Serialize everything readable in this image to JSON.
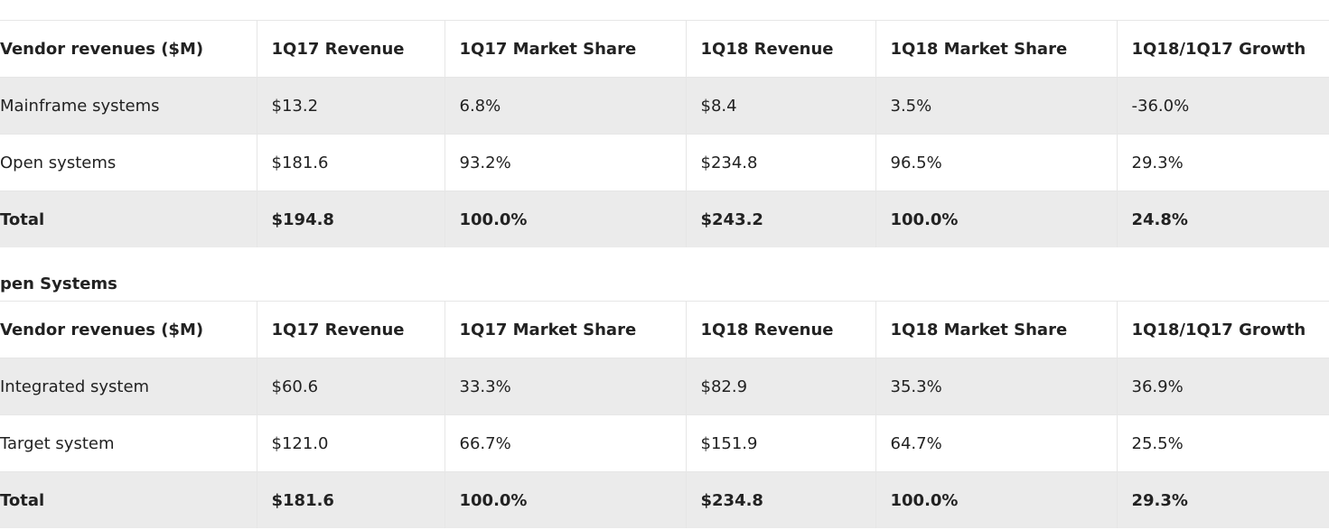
{
  "tables": [
    {
      "headers": [
        "Vendor revenues ($M)",
        "1Q17 Revenue",
        "1Q17 Market Share",
        "1Q18 Revenue",
        "1Q18 Market Share",
        "1Q18/1Q17 Growth"
      ],
      "rows": [
        [
          "Mainframe systems",
          "$13.2",
          "6.8%",
          "$8.4",
          "3.5%",
          "-36.0%"
        ],
        [
          "Open systems",
          "$181.6",
          "93.2%",
          "$234.8",
          "96.5%",
          "29.3%"
        ],
        [
          "Total",
          "$194.8",
          "100.0%",
          "$243.2",
          "100.0%",
          "24.8%"
        ]
      ]
    },
    {
      "caption": "pen Systems",
      "headers": [
        "Vendor revenues ($M)",
        "1Q17 Revenue",
        "1Q17 Market Share",
        "1Q18 Revenue",
        "1Q18 Market Share",
        "1Q18/1Q17 Growth"
      ],
      "rows": [
        [
          "Integrated system",
          "$60.6",
          "33.3%",
          "$82.9",
          "35.3%",
          "36.9%"
        ],
        [
          "Target system",
          "$121.0",
          "66.7%",
          "$151.9",
          "64.7%",
          "25.5%"
        ],
        [
          "Total",
          "$181.6",
          "100.0%",
          "$234.8",
          "100.0%",
          "29.3%"
        ]
      ]
    }
  ]
}
